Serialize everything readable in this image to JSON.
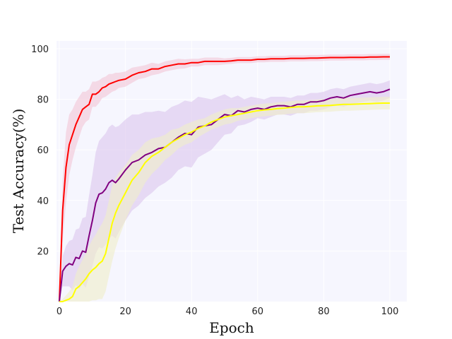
{
  "chart_data": {
    "type": "line",
    "title": "",
    "xlabel": "Epoch",
    "ylabel": "Test Accuracy(%)",
    "xlim": [
      -1,
      105
    ],
    "ylim": [
      0,
      103
    ],
    "xticks": [
      0,
      20,
      40,
      60,
      80,
      100
    ],
    "yticks": [
      20,
      40,
      60,
      80,
      100
    ],
    "grid": true,
    "background": "#f6f6fe",
    "x": [
      0,
      1,
      2,
      3,
      4,
      5,
      6,
      7,
      8,
      9,
      10,
      11,
      12,
      13,
      14,
      15,
      16,
      17,
      18,
      20,
      22,
      24,
      26,
      28,
      30,
      32,
      34,
      36,
      38,
      40,
      42,
      44,
      46,
      48,
      50,
      52,
      54,
      56,
      58,
      60,
      62,
      64,
      66,
      68,
      70,
      72,
      74,
      76,
      78,
      80,
      82,
      84,
      86,
      88,
      90,
      92,
      94,
      96,
      98,
      100
    ],
    "series": [
      {
        "color": "#ff0000",
        "band_color": "#f3c6d6",
        "values": [
          0,
          36,
          53,
          62,
          66,
          70,
          73,
          76,
          77,
          78,
          82,
          82,
          83,
          84.5,
          85,
          86,
          86.5,
          87,
          87.5,
          88,
          89.5,
          90.5,
          91,
          92,
          92,
          93,
          93.5,
          94,
          94,
          94.5,
          94.5,
          95,
          95,
          95,
          95,
          95.2,
          95.5,
          95.5,
          95.5,
          95.8,
          95.8,
          96,
          96,
          96,
          96.2,
          96.2,
          96.2,
          96.3,
          96.3,
          96.4,
          96.5,
          96.5,
          96.5,
          96.6,
          96.6,
          96.6,
          96.7,
          96.7,
          96.8,
          96.8
        ],
        "std": [
          0,
          12,
          14,
          12,
          10,
          9,
          8,
          7,
          6,
          6,
          5,
          5,
          4.5,
          4,
          4,
          4,
          3.5,
          3.5,
          3,
          3,
          3,
          2.5,
          2.5,
          2.5,
          2,
          2,
          2,
          2,
          1.8,
          1.5,
          1.5,
          1.5,
          1.5,
          1.5,
          1.2,
          1.2,
          1.2,
          1.2,
          1.2,
          1.2,
          1.2,
          1.2,
          1.2,
          1.2,
          1.2,
          1.2,
          1.2,
          1.2,
          1.2,
          1.2,
          1.2,
          1.2,
          1.2,
          1.2,
          1.2,
          1.2,
          1.2,
          1.2,
          1.2,
          1.2
        ]
      },
      {
        "color": "#800080",
        "band_color": "#dcc6ec",
        "values": [
          0,
          12,
          14,
          15,
          14.5,
          17.5,
          17,
          20,
          19.5,
          26,
          32,
          39,
          42.5,
          43,
          44.5,
          47,
          48,
          47,
          48.5,
          52,
          55,
          56,
          58,
          59,
          60.5,
          61,
          63,
          65,
          66.5,
          66,
          69,
          69.5,
          70,
          72,
          74,
          73.5,
          75.5,
          75,
          76,
          76.5,
          76,
          77,
          77.5,
          77.5,
          77,
          78,
          78,
          79,
          79,
          79.5,
          80.5,
          81,
          80.5,
          81.5,
          82,
          82.5,
          83,
          82.5,
          83,
          84
        ],
        "std": [
          0,
          6,
          8,
          9,
          10,
          11,
          12,
          13,
          14,
          16,
          18,
          20,
          21,
          22,
          22,
          22,
          22,
          22,
          21,
          20,
          19,
          18,
          17,
          16,
          15,
          14,
          14,
          13,
          13,
          13,
          12,
          11,
          10,
          9,
          8,
          7,
          6,
          5,
          5,
          4,
          4,
          4,
          3.5,
          3.5,
          3.5,
          3.5,
          3.5,
          3.5,
          3.5,
          3.5,
          3.5,
          3.5,
          3.5,
          3.5,
          3.5,
          3.5,
          3.5,
          3.5,
          3.5,
          3.5
        ]
      },
      {
        "color": "#ffff00",
        "band_color": "#f0eec8",
        "values": [
          0,
          0,
          0.5,
          1,
          2,
          5,
          6,
          7.5,
          9,
          11,
          12.5,
          13.5,
          15,
          16,
          19,
          25,
          31,
          35,
          38,
          43,
          48,
          51,
          55,
          57.5,
          59,
          61,
          63,
          64.5,
          66,
          67,
          68.5,
          69.5,
          71,
          72,
          73,
          73.5,
          74,
          74.5,
          75,
          75.5,
          75.8,
          76,
          76.3,
          76.5,
          76.8,
          77,
          77,
          77.2,
          77.4,
          77.5,
          77.6,
          77.8,
          78,
          78,
          78.1,
          78.2,
          78.3,
          78.4,
          78.5,
          78.5
        ],
        "std": [
          0,
          1,
          2,
          3,
          4,
          6,
          8,
          9,
          10,
          11,
          12,
          13,
          14,
          15,
          15,
          15,
          15,
          14,
          13,
          11,
          10,
          9,
          8,
          7,
          6,
          5,
          5,
          4,
          4,
          4,
          3.5,
          3,
          3,
          3,
          3,
          3,
          2.5,
          2.5,
          2.5,
          2.5,
          2.5,
          2.5,
          2.5,
          2.5,
          2.5,
          2.5,
          2.5,
          2.5,
          2.5,
          2.5,
          2.5,
          2.5,
          2.5,
          2.5,
          2.5,
          2.5,
          2.5,
          2.5,
          2.5,
          2.5
        ]
      }
    ]
  }
}
